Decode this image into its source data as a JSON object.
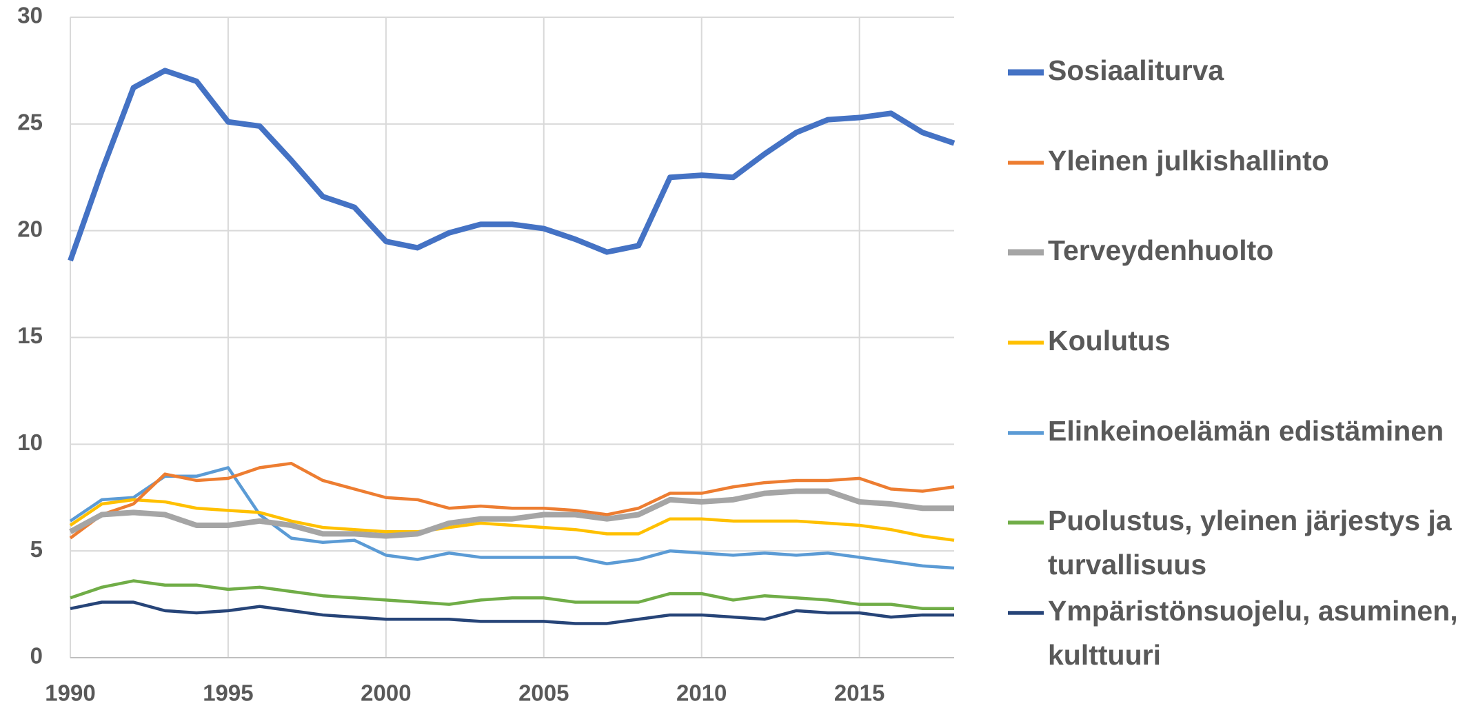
{
  "chart_data": {
    "type": "line",
    "x": [
      1990,
      1991,
      1992,
      1993,
      1994,
      1995,
      1996,
      1997,
      1998,
      1999,
      2000,
      2001,
      2002,
      2003,
      2004,
      2005,
      2006,
      2007,
      2008,
      2009,
      2010,
      2011,
      2012,
      2013,
      2014,
      2015,
      2016,
      2017,
      2018
    ],
    "xlim": [
      1990,
      2018
    ],
    "xticks": [
      1990,
      1995,
      2000,
      2005,
      2010,
      2015
    ],
    "ylim": [
      0,
      30
    ],
    "yticks": [
      0,
      5,
      10,
      15,
      20,
      25,
      30
    ],
    "grid": true,
    "legend": "right",
    "series": [
      {
        "name": "Sosiaaliturva",
        "color": "#4472c4",
        "values": [
          18.6,
          22.8,
          26.7,
          27.5,
          27.0,
          25.1,
          24.9,
          23.3,
          21.6,
          21.1,
          19.5,
          19.2,
          19.9,
          20.3,
          20.3,
          20.1,
          19.6,
          19.0,
          19.3,
          22.5,
          22.6,
          22.5,
          23.6,
          24.6,
          25.2,
          25.3,
          25.5,
          24.6,
          24.1
        ]
      },
      {
        "name": "Yleinen julkishallinto",
        "color": "#ed7d31",
        "values": [
          5.6,
          6.7,
          7.2,
          8.6,
          8.3,
          8.4,
          8.9,
          9.1,
          8.3,
          7.9,
          7.5,
          7.4,
          7.0,
          7.1,
          7.0,
          7.0,
          6.9,
          6.7,
          7.0,
          7.7,
          7.7,
          8.0,
          8.2,
          8.3,
          8.3,
          8.4,
          7.9,
          7.8,
          8.0
        ]
      },
      {
        "name": "Terveydenhuolto",
        "color": "#a5a5a5",
        "values": [
          5.9,
          6.7,
          6.8,
          6.7,
          6.2,
          6.2,
          6.4,
          6.2,
          5.8,
          5.8,
          5.7,
          5.8,
          6.3,
          6.5,
          6.5,
          6.7,
          6.7,
          6.5,
          6.7,
          7.4,
          7.3,
          7.4,
          7.7,
          7.8,
          7.8,
          7.3,
          7.2,
          7.0,
          7.0
        ]
      },
      {
        "name": "Koulutus",
        "color": "#ffc000",
        "values": [
          6.2,
          7.2,
          7.4,
          7.3,
          7.0,
          6.9,
          6.8,
          6.4,
          6.1,
          6.0,
          5.9,
          5.9,
          6.1,
          6.3,
          6.2,
          6.1,
          6.0,
          5.8,
          5.8,
          6.5,
          6.5,
          6.4,
          6.4,
          6.4,
          6.3,
          6.2,
          6.0,
          5.7,
          5.5
        ]
      },
      {
        "name": "Elinkeinoelämän edistäminen",
        "color": "#5b9bd5",
        "values": [
          6.4,
          7.4,
          7.5,
          8.5,
          8.5,
          8.9,
          6.7,
          5.6,
          5.4,
          5.5,
          4.8,
          4.6,
          4.9,
          4.7,
          4.7,
          4.7,
          4.7,
          4.4,
          4.6,
          5.0,
          4.9,
          4.8,
          4.9,
          4.8,
          4.9,
          4.7,
          4.5,
          4.3,
          4.2
        ]
      },
      {
        "name": "Puolustus, yleinen järjestys ja turvallisuus",
        "color": "#70ad47",
        "values": [
          2.8,
          3.3,
          3.6,
          3.4,
          3.4,
          3.2,
          3.3,
          3.1,
          2.9,
          2.8,
          2.7,
          2.6,
          2.5,
          2.7,
          2.8,
          2.8,
          2.6,
          2.6,
          2.6,
          3.0,
          3.0,
          2.7,
          2.9,
          2.8,
          2.7,
          2.5,
          2.5,
          2.3,
          2.3
        ]
      },
      {
        "name": "Ympäristönsuojelu, asuminen, kulttuuri",
        "color": "#264478",
        "values": [
          2.3,
          2.6,
          2.6,
          2.2,
          2.1,
          2.2,
          2.4,
          2.2,
          2.0,
          1.9,
          1.8,
          1.8,
          1.8,
          1.7,
          1.7,
          1.7,
          1.6,
          1.6,
          1.8,
          2.0,
          2.0,
          1.9,
          1.8,
          2.2,
          2.1,
          2.1,
          1.9,
          2.0,
          2.0
        ]
      }
    ]
  }
}
